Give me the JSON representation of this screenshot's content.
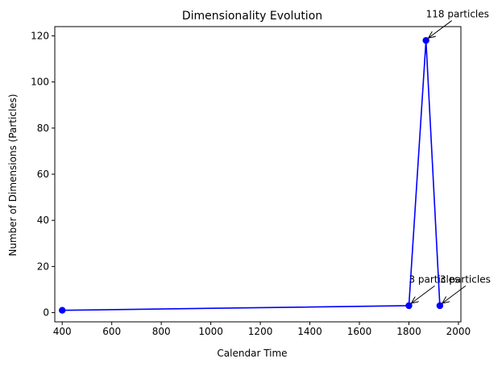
{
  "chart_data": {
    "type": "line",
    "title": "Dimensionality Evolution",
    "xlabel": "Calendar Time",
    "ylabel": "Number of Dimensions (Particles)",
    "xlim": [
      370,
      2010
    ],
    "ylim": [
      -4,
      124
    ],
    "xticks": [
      400,
      600,
      800,
      1000,
      1200,
      1400,
      1600,
      1800,
      2000
    ],
    "yticks": [
      0,
      20,
      40,
      60,
      80,
      100,
      120
    ],
    "grid": false,
    "series": [
      {
        "color": "#0000ff",
        "marker": "circle",
        "x": [
          400,
          1800,
          1869,
          1925
        ],
        "y": [
          1,
          3,
          118,
          3
        ]
      }
    ],
    "annotations": [
      {
        "text": "3 particles",
        "x": 1800,
        "y": 3,
        "text_x": 1800,
        "text_y": 13
      },
      {
        "text": "118 particles",
        "x": 1869,
        "y": 118,
        "text_x": 1869,
        "text_y": 128
      },
      {
        "text": "3 particles",
        "x": 1925,
        "y": 3,
        "text_x": 1925,
        "text_y": 13
      }
    ]
  }
}
